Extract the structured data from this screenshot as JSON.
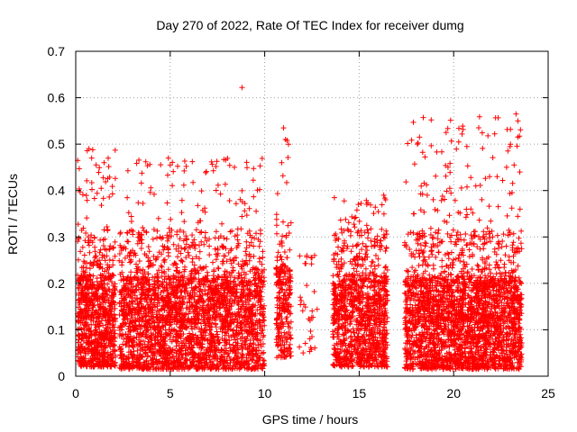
{
  "chart_data": {
    "type": "scatter",
    "title": "Day 270 of 2022, Rate Of TEC Index for receiver dumg",
    "xlabel": "GPS time / hours",
    "ylabel": "ROTI / TECUs",
    "xlim": [
      0,
      25
    ],
    "ylim": [
      0,
      0.7
    ],
    "xticks": [
      0,
      5,
      10,
      15,
      20,
      25
    ],
    "yticks": [
      0,
      0.1,
      0.2,
      0.3,
      0.4,
      0.5,
      0.6,
      0.7
    ],
    "xtick_labels": [
      "0",
      "5",
      "10",
      "15",
      "20",
      "25"
    ],
    "ytick_labels": [
      "0",
      "0.1",
      "0.2",
      "0.3",
      "0.4",
      "0.5",
      "0.6",
      "0.7"
    ],
    "grid": true,
    "marker": "+",
    "color": "#ff0000",
    "segments": [
      {
        "x_start": 0.1,
        "x_end": 2.1,
        "y_base": 0.02,
        "density": 900,
        "peak": 0.49
      },
      {
        "x_start": 2.3,
        "x_end": 10.0,
        "y_base": 0.015,
        "density": 2800,
        "peak": 0.47
      },
      {
        "x_start": 10.6,
        "x_end": 11.4,
        "y_base": 0.04,
        "density": 260,
        "peak": 0.53
      },
      {
        "x_start": 11.8,
        "x_end": 12.8,
        "y_base": 0.05,
        "density": 30,
        "peak": 0.26
      },
      {
        "x_start": 13.6,
        "x_end": 16.5,
        "y_base": 0.02,
        "density": 1100,
        "peak": 0.39
      },
      {
        "x_start": 17.4,
        "x_end": 23.6,
        "y_base": 0.015,
        "density": 2600,
        "peak": 0.56
      }
    ],
    "points": [
      {
        "x": 8.8,
        "y": 0.622
      },
      {
        "x": 19.6,
        "y": 0.525
      },
      {
        "x": 20.7,
        "y": 0.495
      },
      {
        "x": 23.3,
        "y": 0.565
      },
      {
        "x": 23.4,
        "y": 0.55
      },
      {
        "x": 23.4,
        "y": 0.515
      },
      {
        "x": 23.2,
        "y": 0.455
      },
      {
        "x": 0.7,
        "y": 0.49
      },
      {
        "x": 0.9,
        "y": 0.488
      },
      {
        "x": 1.5,
        "y": 0.46
      },
      {
        "x": 4.9,
        "y": 0.47
      },
      {
        "x": 5.0,
        "y": 0.455
      },
      {
        "x": 8.4,
        "y": 0.45
      },
      {
        "x": 11.0,
        "y": 0.535
      },
      {
        "x": 11.1,
        "y": 0.51
      },
      {
        "x": 10.9,
        "y": 0.46
      },
      {
        "x": 12.5,
        "y": 0.255
      },
      {
        "x": 12.4,
        "y": 0.12
      },
      {
        "x": 12.5,
        "y": 0.085
      },
      {
        "x": 16.3,
        "y": 0.39
      },
      {
        "x": 16.4,
        "y": 0.38
      },
      {
        "x": 15.4,
        "y": 0.325
      },
      {
        "x": 15.3,
        "y": 0.31
      },
      {
        "x": 17.9,
        "y": 0.35
      },
      {
        "x": 18.6,
        "y": 0.39
      },
      {
        "x": 19.7,
        "y": 0.45
      },
      {
        "x": 21.9,
        "y": 0.43
      },
      {
        "x": 22.3,
        "y": 0.43
      },
      {
        "x": 22.8,
        "y": 0.45
      },
      {
        "x": 23.5,
        "y": 0.44
      }
    ]
  }
}
